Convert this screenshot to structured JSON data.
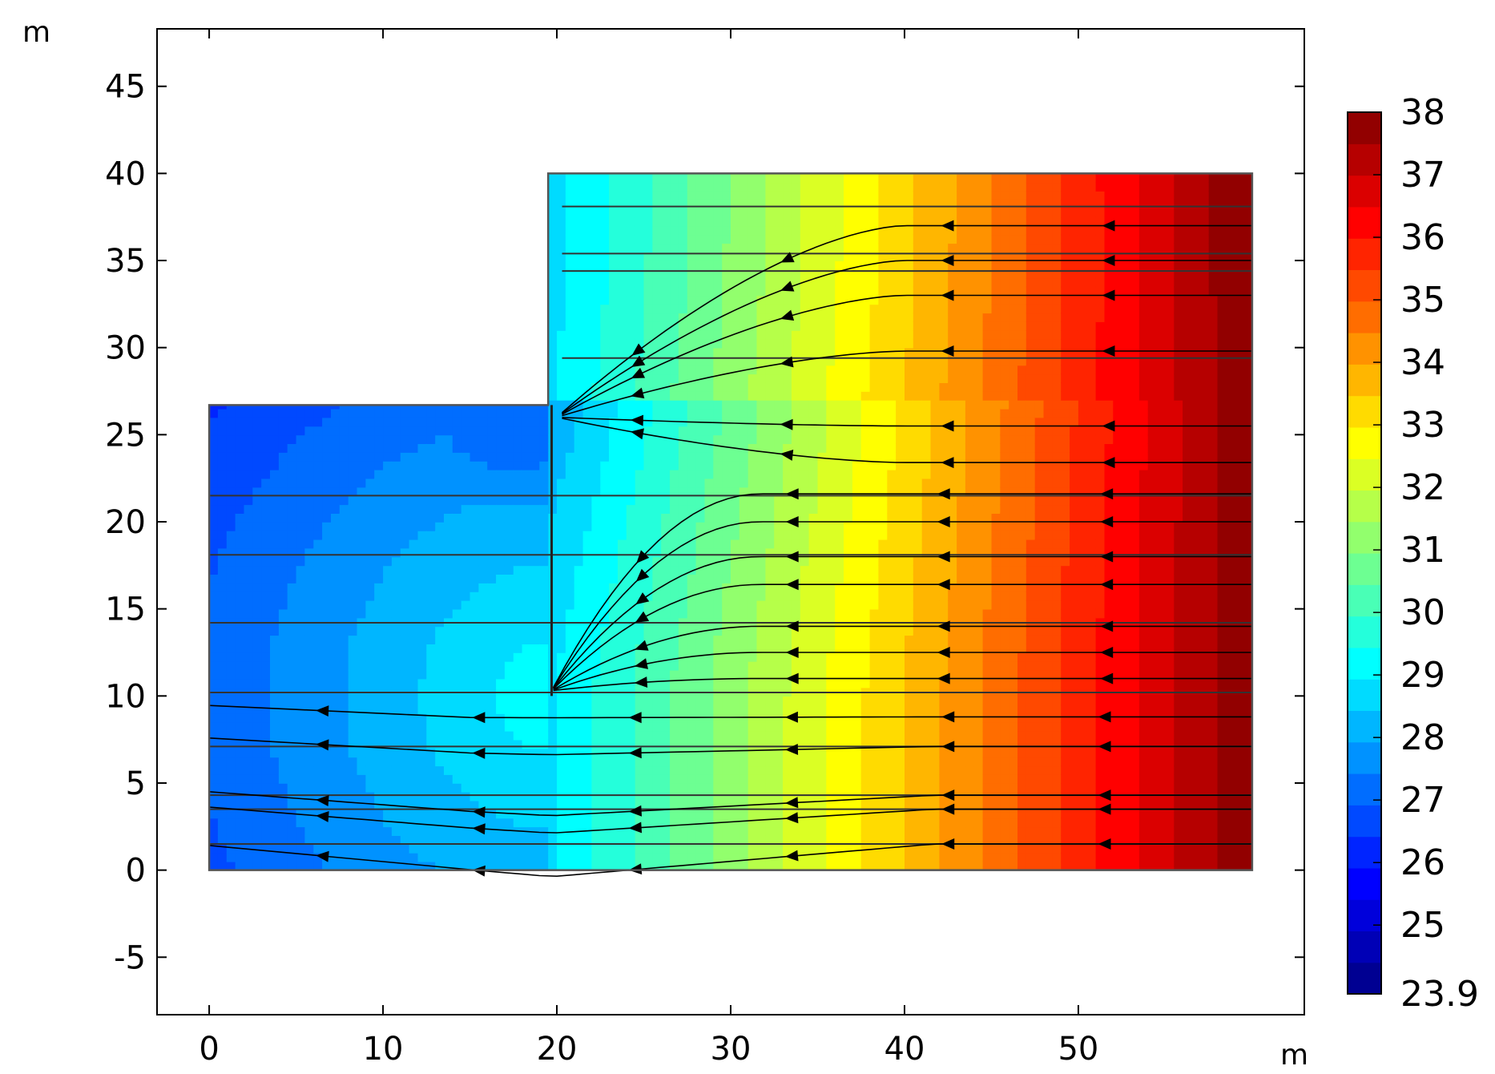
{
  "chart_data": {
    "type": "heatmap",
    "title": "",
    "description_units": {
      "x": "m",
      "y": "m"
    },
    "xlabel": "m",
    "ylabel": "m",
    "xlim": [
      -3,
      63
    ],
    "ylim": [
      -8.3,
      48.3
    ],
    "xticks": [
      "0",
      "10",
      "20",
      "30",
      "40",
      "50"
    ],
    "yticks": [
      "-5",
      "0",
      "5",
      "10",
      "15",
      "20",
      "25",
      "30",
      "35",
      "40",
      "45"
    ],
    "xtick_values": [
      0,
      10,
      20,
      30,
      40,
      50
    ],
    "ytick_values": [
      -5,
      0,
      5,
      10,
      15,
      20,
      25,
      30,
      35,
      40,
      45
    ],
    "domain_polygon": [
      [
        0,
        0
      ],
      [
        60,
        0
      ],
      [
        60,
        40
      ],
      [
        19.5,
        40
      ],
      [
        19.5,
        26.7
      ],
      [
        0,
        26.7
      ]
    ],
    "sheet_pile": {
      "x": 19.7,
      "y_bottom": 10,
      "y_top": 26.7
    },
    "colorbar": {
      "min": 23.9,
      "max": 38,
      "tick_labels": [
        "38",
        "37",
        "36",
        "35",
        "34",
        "33",
        "32",
        "31",
        "30",
        "29",
        "28",
        "27",
        "26",
        "25",
        "23.9"
      ],
      "tick_values": [
        38,
        37,
        36,
        35,
        34,
        33,
        32,
        31,
        30,
        29,
        28,
        27,
        26,
        25,
        23.9
      ],
      "colormap": "jet"
    },
    "field_samples": [
      {
        "x": 2,
        "y": 5,
        "value": 25.6
      },
      {
        "x": 10,
        "y": 5,
        "value": 26.6
      },
      {
        "x": 20,
        "y": 5,
        "value": 29.0
      },
      {
        "x": 30,
        "y": 5,
        "value": 31.5
      },
      {
        "x": 40,
        "y": 5,
        "value": 34.2
      },
      {
        "x": 50,
        "y": 5,
        "value": 36.5
      },
      {
        "x": 59,
        "y": 5,
        "value": 38.0
      },
      {
        "x": 30,
        "y": 35,
        "value": 32.5
      },
      {
        "x": 45,
        "y": 35,
        "value": 35.0
      }
    ],
    "streamline_start_y": [
      1.5,
      3.5,
      4.3,
      7.1,
      8.8,
      11,
      12.5,
      14,
      16.4,
      18,
      20,
      21.6,
      23.4,
      25.5,
      29.8,
      33,
      35,
      37
    ],
    "horizontal_lines_y": [
      1.5,
      3.5,
      4.3,
      7.1,
      10.2,
      14.2,
      18.1,
      21.5,
      29.4,
      34.4,
      35.4,
      38.1
    ],
    "arrow_columns_x": [
      7,
      15.5,
      24.5,
      33.5,
      42.5,
      51.5
    ]
  }
}
